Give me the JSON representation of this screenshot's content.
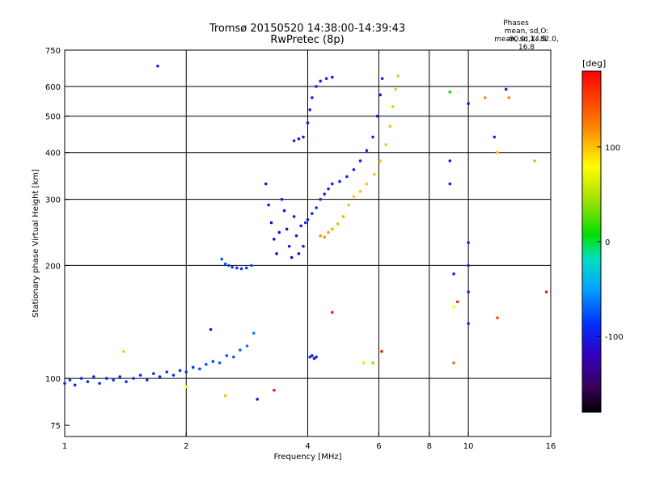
{
  "header": {
    "title": "Tromsø 20150520 14:38:00-14:39:43",
    "subtitle": "RwPretec (8p)"
  },
  "stats": {
    "heading": "Phases",
    "line_o": "mean, sd,O: -90.9, 14.9",
    "line_x": "mean, sd,X:  82.0, 16.8"
  },
  "colorbar": {
    "unit": "[deg]",
    "min": -180,
    "max": 180,
    "ticks": [
      {
        "v": 100,
        "label": "100"
      },
      {
        "v": 0,
        "label": "0"
      },
      {
        "v": -100,
        "label": "-100"
      }
    ]
  },
  "chart_data": {
    "type": "scatter",
    "xlabel": "Frequency [MHz]",
    "ylabel": "Stationary phase Virtual Height [km]",
    "xscale": "log",
    "yscale": "log",
    "xlim": [
      1,
      16
    ],
    "ylim": [
      70,
      750
    ],
    "xticks": [
      {
        "v": 1,
        "label": "1"
      },
      {
        "v": 2,
        "label": "2"
      },
      {
        "v": 4,
        "label": "4"
      },
      {
        "v": 6,
        "label": "6"
      },
      {
        "v": 8,
        "label": "8"
      },
      {
        "v": 10,
        "label": "10"
      },
      {
        "v": 16,
        "label": "16"
      }
    ],
    "yticks": [
      {
        "v": 75,
        "label": "75"
      },
      {
        "v": 100,
        "label": "100"
      },
      {
        "v": 200,
        "label": "200"
      },
      {
        "v": 300,
        "label": "300"
      },
      {
        "v": 400,
        "label": "400"
      },
      {
        "v": 500,
        "label": "500"
      },
      {
        "v": 600,
        "label": "600"
      },
      {
        "v": 750,
        "label": "750"
      }
    ],
    "vgrid": [
      2,
      4,
      6,
      8,
      10
    ],
    "hgrid": [
      100,
      200,
      300,
      400,
      500,
      600
    ],
    "series": [
      {
        "points": [
          [
            1.0,
            97,
            -90
          ],
          [
            1.03,
            99,
            -90
          ],
          [
            1.06,
            96,
            -95
          ],
          [
            1.1,
            100,
            -90
          ],
          [
            1.14,
            98,
            -95
          ],
          [
            1.18,
            101,
            -90
          ],
          [
            1.22,
            97,
            -90
          ],
          [
            1.27,
            100,
            -95
          ],
          [
            1.32,
            99,
            -90
          ],
          [
            1.37,
            101,
            -95
          ],
          [
            1.42,
            98,
            -90
          ],
          [
            1.48,
            100,
            -90
          ],
          [
            1.54,
            102,
            -95
          ],
          [
            1.6,
            99,
            -90
          ],
          [
            1.66,
            103,
            -90
          ],
          [
            1.72,
            101,
            -95
          ],
          [
            1.79,
            104,
            -90
          ],
          [
            1.86,
            102,
            -90
          ],
          [
            1.93,
            105,
            -85
          ],
          [
            2.0,
            104,
            -85
          ],
          [
            2.08,
            107,
            -85
          ],
          [
            2.16,
            106,
            -80
          ],
          [
            2.24,
            109,
            -80
          ],
          [
            2.33,
            111,
            -80
          ],
          [
            2.42,
            110,
            -75
          ],
          [
            2.52,
            115,
            -75
          ],
          [
            2.62,
            114,
            -70
          ],
          [
            2.72,
            119,
            -70
          ],
          [
            2.83,
            122,
            -65
          ],
          [
            2.94,
            132,
            -60
          ]
        ]
      },
      {
        "points": [
          [
            2.45,
            208,
            -75
          ],
          [
            2.5,
            202,
            -75
          ],
          [
            2.55,
            200,
            -80
          ],
          [
            2.6,
            198,
            -85
          ],
          [
            2.67,
            197,
            -85
          ],
          [
            2.74,
            196,
            -85
          ],
          [
            2.82,
            197,
            -80
          ],
          [
            2.9,
            200,
            -80
          ]
        ]
      },
      {
        "points": [
          [
            3.15,
            330,
            -110
          ],
          [
            3.2,
            290,
            -110
          ],
          [
            3.25,
            260,
            -115
          ],
          [
            3.3,
            235,
            -115
          ],
          [
            3.35,
            215,
            -120
          ],
          [
            3.4,
            245,
            -115
          ],
          [
            3.45,
            300,
            -110
          ],
          [
            3.5,
            280,
            -115
          ],
          [
            3.55,
            250,
            -115
          ],
          [
            3.6,
            225,
            -110
          ],
          [
            3.65,
            210,
            -115
          ],
          [
            3.7,
            270,
            -110
          ],
          [
            3.75,
            240,
            -110
          ],
          [
            3.8,
            215,
            -110
          ],
          [
            3.85,
            255,
            -105
          ],
          [
            3.9,
            225,
            -105
          ],
          [
            3.95,
            260,
            -100
          ],
          [
            4.0,
            265,
            -100
          ],
          [
            4.1,
            275,
            -95
          ],
          [
            4.2,
            285,
            -95
          ],
          [
            4.3,
            300,
            -95
          ],
          [
            4.4,
            310,
            -95
          ],
          [
            4.5,
            320,
            -95
          ],
          [
            4.6,
            330,
            -95
          ],
          [
            4.8,
            335,
            -95
          ],
          [
            5.0,
            345,
            -95
          ],
          [
            5.2,
            360,
            -95
          ],
          [
            5.4,
            380,
            -95
          ],
          [
            5.6,
            405,
            -95
          ],
          [
            5.8,
            440,
            -95
          ],
          [
            5.95,
            500,
            -95
          ],
          [
            6.05,
            570,
            -100
          ],
          [
            6.12,
            630,
            -100
          ]
        ]
      },
      {
        "points": [
          [
            3.7,
            430,
            -105
          ],
          [
            3.8,
            435,
            -105
          ],
          [
            3.9,
            440,
            -100
          ],
          [
            4.0,
            480,
            -100
          ],
          [
            4.05,
            520,
            -100
          ],
          [
            4.1,
            560,
            -100
          ],
          [
            4.2,
            600,
            -100
          ],
          [
            4.3,
            620,
            -100
          ],
          [
            4.45,
            630,
            -100
          ],
          [
            4.6,
            635,
            -100
          ]
        ]
      },
      {
        "points": [
          [
            4.05,
            114,
            -100
          ],
          [
            4.1,
            115,
            -100
          ],
          [
            4.15,
            113,
            -100
          ],
          [
            4.2,
            114,
            -100
          ]
        ]
      },
      {
        "points": [
          [
            4.3,
            240,
            115
          ],
          [
            4.4,
            238,
            115
          ],
          [
            4.5,
            245,
            110
          ],
          [
            4.6,
            250,
            110
          ],
          [
            4.75,
            258,
            105
          ],
          [
            4.9,
            270,
            105
          ],
          [
            5.05,
            290,
            100
          ],
          [
            5.2,
            305,
            100
          ],
          [
            5.4,
            315,
            100
          ],
          [
            5.6,
            330,
            100
          ],
          [
            5.85,
            350,
            100
          ],
          [
            6.05,
            380,
            100
          ],
          [
            6.25,
            420,
            100
          ],
          [
            6.4,
            470,
            100
          ],
          [
            6.5,
            530,
            100
          ],
          [
            6.6,
            590,
            100
          ],
          [
            6.7,
            640,
            100
          ]
        ]
      },
      {
        "points": [
          [
            1.7,
            680,
            -100
          ],
          [
            9.0,
            380,
            -100
          ],
          [
            9.0,
            330,
            -100
          ],
          [
            9.2,
            190,
            -100
          ],
          [
            10.0,
            540,
            -100
          ],
          [
            10.0,
            230,
            -100
          ],
          [
            10.0,
            200,
            -100
          ],
          [
            10.0,
            170,
            -100
          ],
          [
            10.0,
            140,
            -100
          ],
          [
            11.6,
            440,
            -100
          ],
          [
            12.4,
            590,
            -100
          ],
          [
            2.3,
            135,
            -100
          ],
          [
            3.0,
            88,
            -110
          ],
          [
            9.0,
            580,
            10
          ],
          [
            9.2,
            155,
            80
          ],
          [
            9.4,
            160,
            160
          ],
          [
            11.0,
            560,
            120
          ],
          [
            11.8,
            400,
            100
          ],
          [
            12.6,
            560,
            120
          ],
          [
            14.6,
            380,
            40
          ],
          [
            15.6,
            170,
            170
          ],
          [
            11.8,
            145,
            150
          ],
          [
            9.2,
            110,
            130
          ],
          [
            3.3,
            93,
            170
          ],
          [
            4.6,
            150,
            170
          ],
          [
            5.5,
            110,
            90
          ],
          [
            5.8,
            110,
            40
          ],
          [
            6.1,
            118,
            170
          ],
          [
            1.4,
            118,
            100
          ],
          [
            2.0,
            95,
            80
          ],
          [
            2.5,
            90,
            100
          ]
        ]
      }
    ]
  }
}
